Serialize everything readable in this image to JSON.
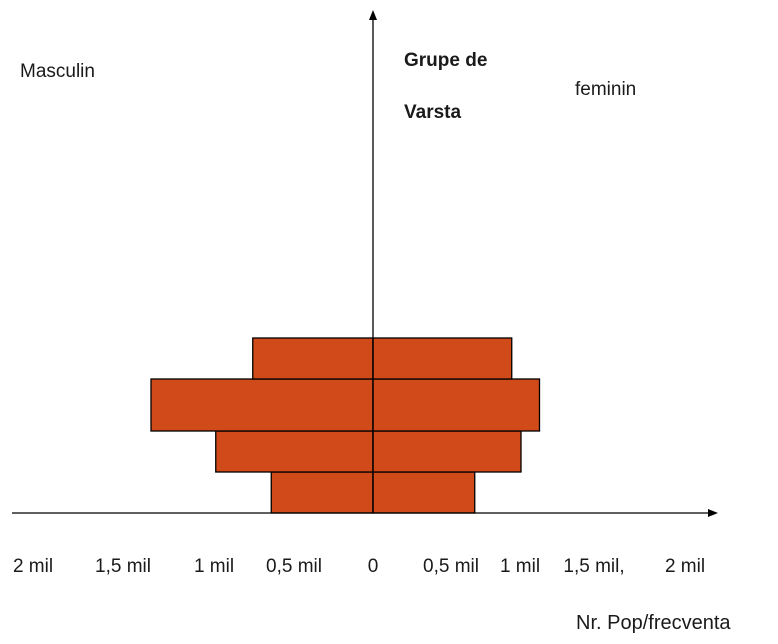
{
  "chart_data": {
    "type": "bar",
    "orientation": "population-pyramid",
    "left_side_label": "Masculin",
    "right_side_label": "feminin",
    "y_axis_title": [
      "Grupe de",
      "Varsta"
    ],
    "x_axis_title": "Nr. Pop/frecventa",
    "x_tick_labels": [
      "2 mil",
      "1,5 mil",
      "1 mil",
      "0,5 mil",
      "0",
      "0,5 mil",
      "1 mil",
      "1,5 mil,",
      "2 mil"
    ],
    "x_tick_values": [
      -2,
      -1.5,
      -1,
      -0.5,
      0,
      0.5,
      1,
      1.5,
      2
    ],
    "bar_color": "#d04a1a",
    "series": [
      {
        "values": [
          0.55,
          0.85,
          1.2,
          0.65
        ]
      },
      {
        "values": [
          0.55,
          0.8,
          0.9,
          0.75
        ]
      }
    ]
  }
}
